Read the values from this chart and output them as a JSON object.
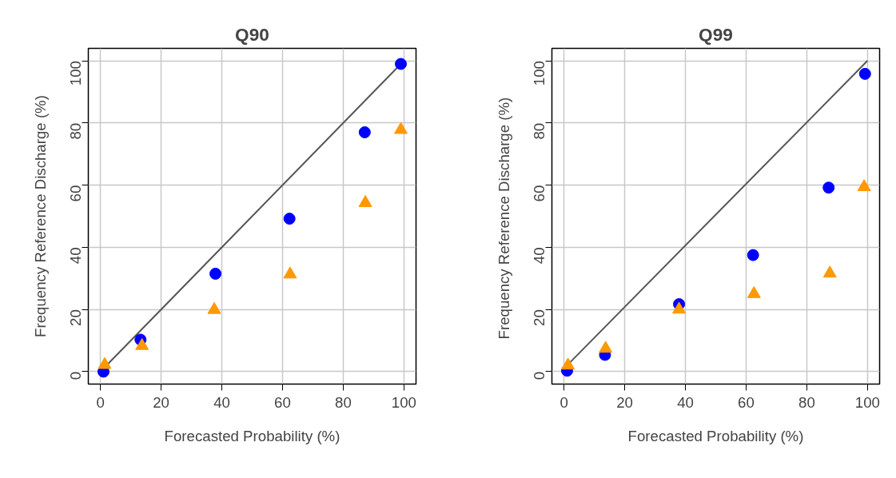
{
  "chart_data": [
    {
      "type": "scatter",
      "title": "Q90",
      "xlabel": "Forecasted Probability (%)",
      "ylabel": "Frequency Reference Discharge (%)",
      "xlim": [
        -4,
        104
      ],
      "ylim": [
        -4,
        104
      ],
      "xticks": [
        0,
        20,
        40,
        60,
        80,
        100
      ],
      "yticks": [
        0,
        20,
        40,
        60,
        80,
        100
      ],
      "grid": true,
      "series": [
        {
          "color": "#0000ff",
          "marker": "circle",
          "x": [
            1,
            13.2,
            37.9,
            62.3,
            87.1,
            99
          ],
          "values": [
            0,
            10.3,
            31.5,
            49.2,
            77,
            99
          ]
        },
        {
          "color": "#ff9900",
          "marker": "triangle",
          "x": [
            1.4,
            13.7,
            37.5,
            62.5,
            87.3,
            99
          ],
          "values": [
            2.2,
            8.3,
            19.9,
            31.3,
            54.3,
            77.8
          ]
        },
        {
          "type": "line",
          "color": "#555555",
          "marker": "none",
          "x": [
            1,
            99
          ],
          "values": [
            1,
            99
          ]
        }
      ]
    },
    {
      "type": "scatter",
      "title": "Q99",
      "xlabel": "Forecasted Probability (%)",
      "ylabel": "Frequency Reference Discharge  (%)",
      "xlim": [
        -4,
        104
      ],
      "ylim": [
        -4,
        104
      ],
      "xticks": [
        0,
        20,
        40,
        60,
        80,
        100
      ],
      "yticks": [
        0,
        20,
        40,
        60,
        80,
        100
      ],
      "grid": true,
      "series": [
        {
          "color": "#0000ff",
          "marker": "circle",
          "x": [
            1,
            13.5,
            37.9,
            62.3,
            87.2,
            99.2
          ],
          "values": [
            0.3,
            5.4,
            21.7,
            37.5,
            59.2,
            95.8
          ]
        },
        {
          "color": "#ff9900",
          "marker": "triangle",
          "x": [
            1.3,
            13.7,
            37.9,
            62.6,
            87.6,
            98.9
          ],
          "values": [
            2,
            7.4,
            20,
            25,
            31.6,
            59.4
          ]
        },
        {
          "type": "line",
          "color": "#555555",
          "marker": "none",
          "x": [
            1,
            100
          ],
          "values": [
            2,
            100
          ]
        }
      ]
    }
  ]
}
